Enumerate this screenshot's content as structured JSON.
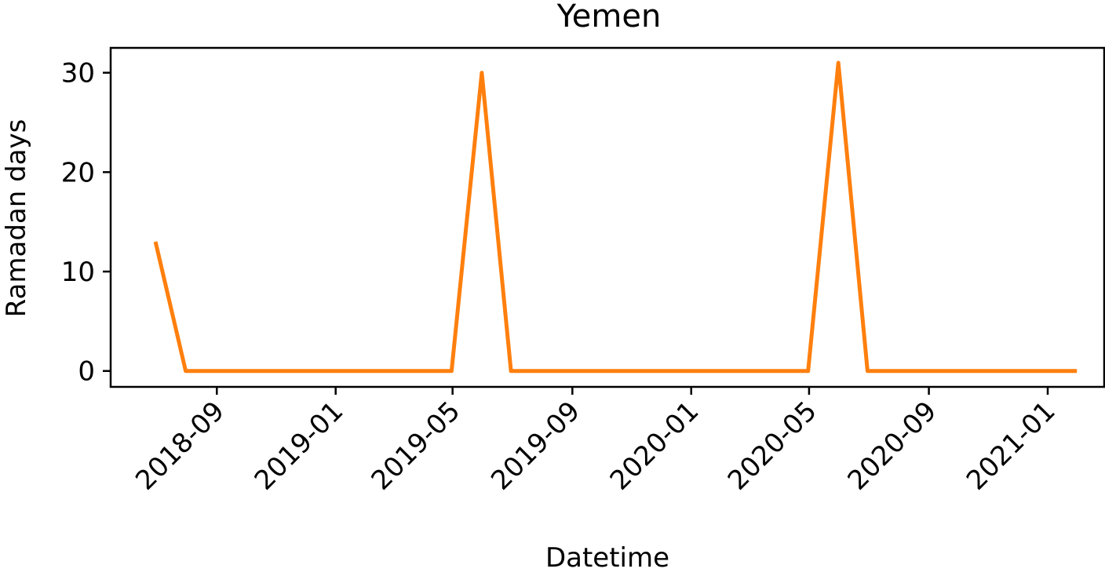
{
  "chart_data": {
    "type": "line",
    "title": "Yemen",
    "xlabel": "Datetime",
    "ylabel": "Ramadan days",
    "x_ticks": [
      "2018-09",
      "2019-01",
      "2019-05",
      "2019-09",
      "2020-01",
      "2020-05",
      "2020-09",
      "2021-01"
    ],
    "y_ticks": [
      0,
      10,
      20,
      30
    ],
    "ylim": [
      -1.6,
      32.5
    ],
    "xlim": [
      "2018-05-15",
      "2021-02-28"
    ],
    "grid": false,
    "legend": "none",
    "series": [
      {
        "color": "#ff7f0e",
        "x": [
          "2018-06-30",
          "2018-07-31",
          "2018-08-31",
          "2018-09-30",
          "2018-10-31",
          "2018-11-30",
          "2018-12-31",
          "2019-01-31",
          "2019-02-28",
          "2019-03-31",
          "2019-04-30",
          "2019-05-31",
          "2019-06-30",
          "2019-07-31",
          "2019-08-31",
          "2019-09-30",
          "2019-10-31",
          "2019-11-30",
          "2019-12-31",
          "2020-01-31",
          "2020-02-29",
          "2020-03-31",
          "2020-04-30",
          "2020-05-31",
          "2020-06-30",
          "2020-07-31",
          "2020-08-31",
          "2020-09-30",
          "2020-10-31",
          "2020-11-30",
          "2020-12-31",
          "2021-01-31"
        ],
        "values": [
          13,
          0,
          0,
          0,
          0,
          0,
          0,
          0,
          0,
          0,
          0,
          30,
          0,
          0,
          0,
          0,
          0,
          0,
          0,
          0,
          0,
          0,
          0,
          31,
          0,
          0,
          0,
          0,
          0,
          0,
          0,
          0
        ]
      }
    ]
  }
}
